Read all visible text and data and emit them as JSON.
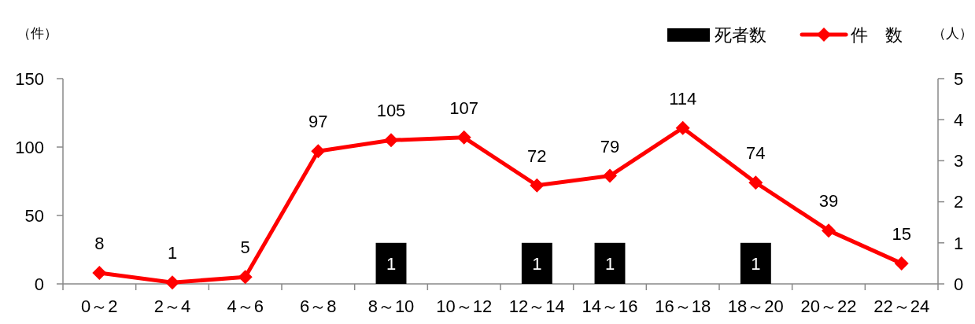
{
  "chart_data": {
    "type": "bar",
    "ylabel": "（件）",
    "y2label": "（人）",
    "categories": [
      "0～2",
      "2～4",
      "4～6",
      "6～8",
      "8～10",
      "10～12",
      "12～14",
      "14～16",
      "16～18",
      "18～20",
      "20～22",
      "22～24"
    ],
    "series": [
      {
        "name": "死者数",
        "axis": "y2",
        "color": "#000000",
        "values": [
          null,
          null,
          null,
          null,
          1,
          null,
          1,
          1,
          null,
          1,
          null,
          null
        ]
      },
      {
        "name": "件　数",
        "type": "line",
        "color": "#ff0000",
        "values": [
          8,
          1,
          5,
          97,
          105,
          107,
          72,
          79,
          114,
          74,
          39,
          15
        ]
      }
    ],
    "ylim": [
      0,
      150
    ],
    "yticks": [
      0,
      50,
      100,
      150
    ],
    "y2lim": [
      0,
      5
    ],
    "y2ticks": [
      0,
      1,
      2,
      3,
      4,
      5
    ],
    "legend": "top right",
    "marker": "diamond",
    "line_style": "solid",
    "data_labels": true
  }
}
